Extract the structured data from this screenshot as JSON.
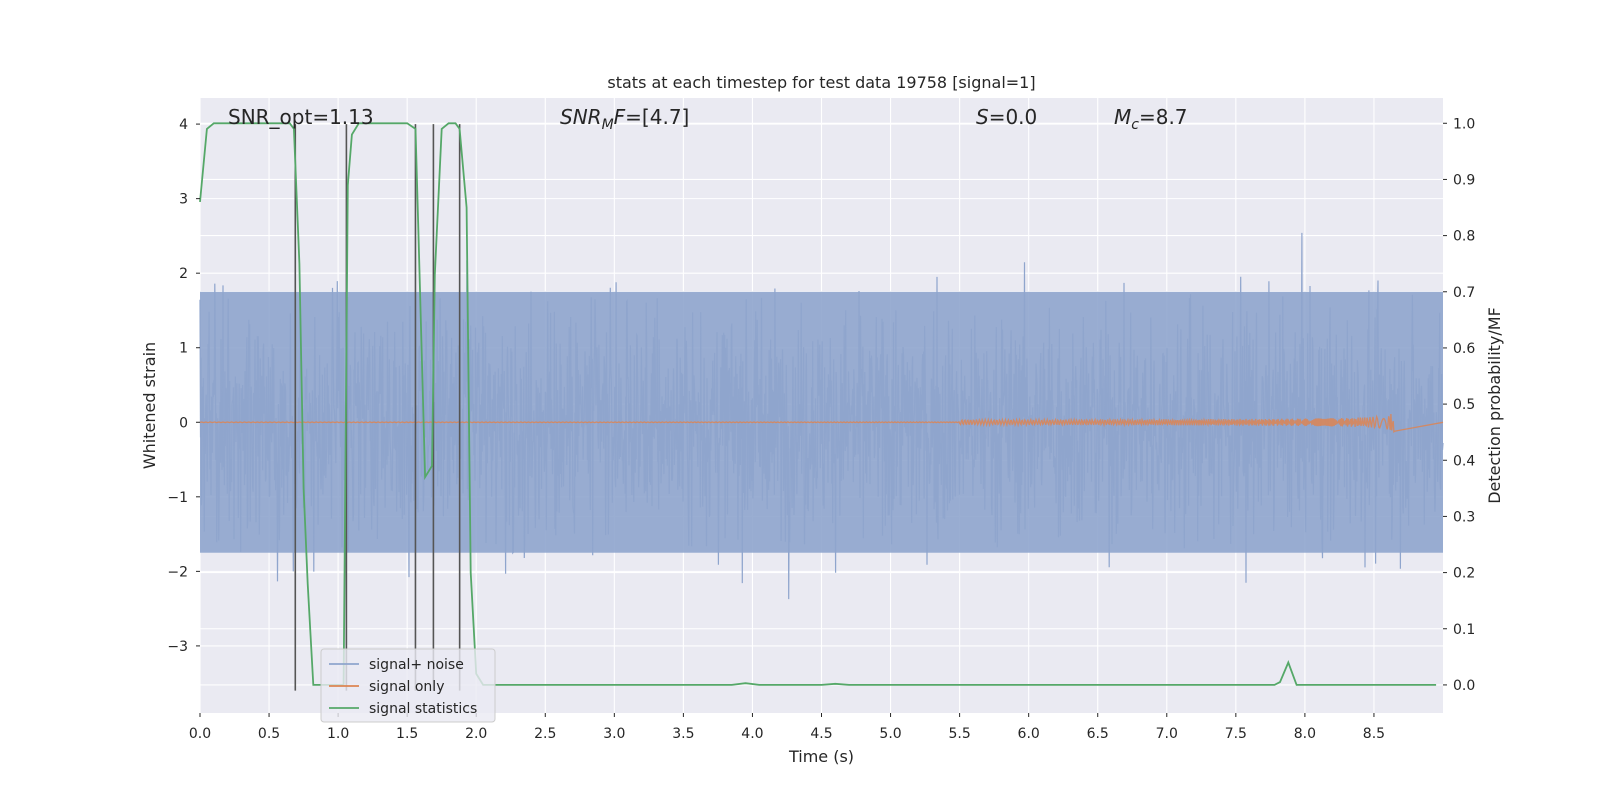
{
  "chart_data": {
    "type": "line",
    "title": "stats at each timestep for test data 19758 [signal=1]",
    "xlabel": "Time (s)",
    "ylabel_left": "Whitened strain",
    "ylabel_right": "Detection probability/MF",
    "xlim": [
      0.0,
      9.0
    ],
    "ylim_left": [
      -3.9,
      4.35
    ],
    "ylim_right": [
      -0.05,
      1.045
    ],
    "x_ticks": [
      0.0,
      0.5,
      1.0,
      1.5,
      2.0,
      2.5,
      3.0,
      3.5,
      4.0,
      4.5,
      5.0,
      5.5,
      6.0,
      6.5,
      7.0,
      7.5,
      8.0,
      8.5
    ],
    "x_tick_labels": [
      "0.0",
      "0.5",
      "1.0",
      "1.5",
      "2.0",
      "2.5",
      "3.0",
      "3.5",
      "4.0",
      "4.5",
      "5.0",
      "5.5",
      "6.0",
      "6.5",
      "7.0",
      "7.5",
      "8.0",
      "8.5"
    ],
    "y_left_ticks": [
      -3,
      -2,
      -1,
      0,
      1,
      2,
      3,
      4
    ],
    "y_left_tick_labels": [
      "−3",
      "−2",
      "−1",
      "0",
      "1",
      "2",
      "3",
      "4"
    ],
    "y_right_ticks": [
      0.0,
      0.1,
      0.2,
      0.3,
      0.4,
      0.5,
      0.6,
      0.7,
      0.8,
      0.9,
      1.0
    ],
    "y_right_tick_labels": [
      "0.0",
      "0.1",
      "0.2",
      "0.3",
      "0.4",
      "0.5",
      "0.6",
      "0.7",
      "0.8",
      "0.9",
      "1.0"
    ],
    "grid": true,
    "legend_position": "lower-left",
    "annotations": {
      "snr_opt": "SNR_opt=1.13",
      "snr_mf_base": "SNR",
      "snr_mf_sub": "M",
      "snr_mf_tail": "F=[4.7]",
      "s_base": "S",
      "s_tail": "=0.0",
      "mc_base": "M",
      "mc_sub": "c",
      "mc_tail": "=8.7"
    },
    "vertical_markers": [
      0.69,
      1.06,
      1.56,
      1.69,
      1.88
    ],
    "vertical_marker_range": [
      -3.6,
      4.0
    ],
    "series": [
      {
        "name": "signal+ noise",
        "axis": "left",
        "color": "#8fa5cd",
        "description": "whitened strain noise, spans approx -3.6 to 4.0, typical band -1.8 to 1.8",
        "envelope_max": 4.0,
        "envelope_min": -3.6
      },
      {
        "name": "signal only",
        "axis": "left",
        "color": "#dd8452",
        "chirp_peak_time": 8.65,
        "chirp_peak_amplitude": 0.18
      },
      {
        "name": "signal statistics",
        "axis": "right",
        "color": "#55a868",
        "x": [
          0.0,
          0.05,
          0.1,
          0.2,
          0.3,
          0.4,
          0.5,
          0.6,
          0.65,
          0.68,
          0.72,
          0.75,
          0.78,
          0.82,
          0.9,
          1.0,
          1.04,
          1.07,
          1.1,
          1.15,
          1.2,
          1.3,
          1.4,
          1.5,
          1.56,
          1.58,
          1.63,
          1.68,
          1.7,
          1.75,
          1.8,
          1.85,
          1.88,
          1.93,
          1.96,
          2.0,
          2.05,
          2.1,
          2.5,
          3.0,
          3.5,
          3.85,
          3.95,
          4.05,
          4.5,
          4.6,
          4.7,
          5.0,
          6.0,
          7.0,
          7.5,
          7.78,
          7.82,
          7.88,
          7.94,
          8.0,
          8.5,
          8.95
        ],
        "y": [
          0.86,
          0.99,
          1.0,
          1.0,
          1.0,
          1.0,
          1.0,
          1.0,
          1.0,
          0.99,
          0.75,
          0.35,
          0.18,
          0.0,
          0.0,
          0.0,
          0.0,
          0.89,
          0.98,
          1.0,
          1.0,
          1.0,
          1.0,
          1.0,
          0.99,
          0.82,
          0.37,
          0.39,
          0.73,
          0.99,
          1.0,
          1.0,
          0.99,
          0.85,
          0.2,
          0.02,
          0.0,
          0.0,
          0.0,
          0.0,
          0.0,
          0.0,
          0.003,
          0.0,
          0.0,
          0.002,
          0.0,
          0.0,
          0.0,
          0.0,
          0.0,
          0.0,
          0.005,
          0.04,
          0.0,
          0.0,
          0.0,
          0.0
        ]
      }
    ]
  }
}
